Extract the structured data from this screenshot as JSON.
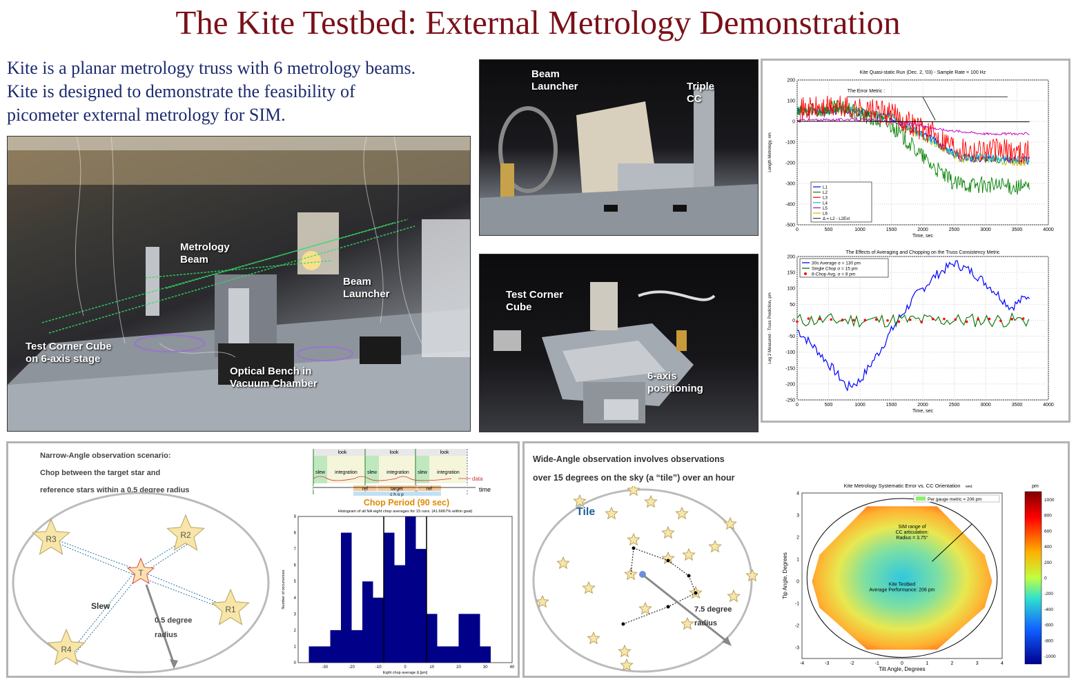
{
  "header": {
    "title": "The Kite Testbed: External Metrology Demonstration"
  },
  "intro": {
    "lines": [
      "Kite is a planar metrology truss with 6 metrology beams.",
      "Kite is designed to demonstrate the feasibility of",
      "picometer external metrology for SIM."
    ]
  },
  "photo_main": {
    "labels": [
      "Metrology\nBeam",
      "Beam\nLauncher",
      "Test Corner Cube\non 6-axis stage",
      "Optical Bench in\nVacuum Chamber"
    ]
  },
  "photo_top": {
    "labels": [
      "Beam\nLauncher",
      "Triple\nCC"
    ]
  },
  "photo_bottom": {
    "labels": [
      "Test Corner\nCube",
      "6-axis\npositioning"
    ]
  },
  "chart_top": {
    "title": "Kite Quasi-static Run (Dec. 2, '03) - Sample Rate = 100 Hz",
    "annotation": "The Error Metric :",
    "xlabel": "Time,   sec",
    "ylabel": "Length Metrology,  nm",
    "xticks": [
      "0",
      "500",
      "1000",
      "1500",
      "2000",
      "2500",
      "3000",
      "3500",
      "4000"
    ],
    "yticks": [
      "200",
      "100",
      "0",
      "-100",
      "-200",
      "-300",
      "-400",
      "-500"
    ],
    "legend": [
      "L1",
      "L2",
      "L3",
      "L4",
      "L5",
      "L6",
      "Δ = L2 - L2Est"
    ],
    "colors": [
      "#0000ff",
      "#008000",
      "#ff0000",
      "#00bfbf",
      "#bf00bf",
      "#bfbf00",
      "#404040"
    ]
  },
  "chart_mid": {
    "title": "The Effects of Averaging and Chopping on the Truss Consistency Metric",
    "xlabel": "Time,   sec",
    "ylabel": "Leg 2 Measured - Truss Prediction,   pm",
    "xticks": [
      "0",
      "500",
      "1000",
      "1500",
      "2000",
      "2500",
      "3000",
      "3500",
      "4000"
    ],
    "yticks": [
      "200",
      "150",
      "100",
      "50",
      "0",
      "-50",
      "-100",
      "-150",
      "-200",
      "-250"
    ],
    "legend": [
      "30s Average    σ = 130 pm",
      "Single Chop   σ = 15 pm",
      "8-Chop Avg.   σ = 8 pm"
    ],
    "colors": [
      "#0000ff",
      "#007000",
      "#ff0000"
    ]
  },
  "narrow": {
    "text": [
      "Narrow-Angle observation scenario:",
      "Chop between the target star and",
      "reference stars within a 0.5 degree radius"
    ],
    "stars": [
      "R3",
      "R2",
      "T",
      "R1",
      "R4"
    ],
    "slew": "Slew",
    "radius": "0.5 degree\nradius"
  },
  "chop": {
    "look": [
      "look",
      "look",
      "look"
    ],
    "slew": [
      "slew",
      "slew",
      "slew"
    ],
    "integration": [
      "integration",
      "integration",
      "integration"
    ],
    "data": "data",
    "time": "time",
    "ref": [
      "ref",
      "ref"
    ],
    "target": "target",
    "chop": "c h o p",
    "period": "Chop Period (90 sec)"
  },
  "hist": {
    "title": "Histogram of all NA eight chop averages for 15 runs. (41.6667% within goal)",
    "xlabel": "Eight chop average Δ [pm]",
    "ylabel": "Number of occurrences",
    "xticks": [
      "-30",
      "-20",
      "-10",
      "0",
      "10",
      "20",
      "30",
      "40"
    ],
    "yticks": [
      "0",
      "1",
      "2",
      "3",
      "4",
      "5",
      "6",
      "7",
      "8",
      "9"
    ],
    "bin_edges": [
      -36,
      -32,
      -28,
      -24,
      -20,
      -16,
      -12,
      -8,
      -4,
      0,
      4,
      8,
      12,
      16,
      20,
      24,
      28
    ],
    "counts": [
      1,
      1,
      2,
      8,
      2,
      5,
      4,
      8,
      6,
      9,
      7,
      3,
      1,
      1,
      3,
      3,
      1
    ],
    "goal_lines": [
      -8,
      8
    ]
  },
  "wide": {
    "text": [
      "Wide-Angle observation involves observations",
      "over 15 degrees on the sky (a “tile”) over an hour"
    ],
    "tile": "Tile",
    "radius": "7.5 degree\nradius"
  },
  "heat": {
    "title": "Kite Metrology Systematic Error vs. CC Orientation",
    "title_suffix": "wed.",
    "legend": "Per gauge metric = 206 pm",
    "ann1": [
      "SIM range of",
      "CC articulation:",
      "Radius = 3.75°"
    ],
    "ann2": [
      "Kite Testbed",
      "Average Performance:  206 pm"
    ],
    "xlabel": "Tilt Angle,   Degrees",
    "ylabel": "Tip Angle,   Degrees",
    "xticks": [
      "-4",
      "-3",
      "-2",
      "-1",
      "0",
      "1",
      "2",
      "3",
      "4"
    ],
    "yticks": [
      "4",
      "3",
      "2",
      "1",
      "0",
      "-1",
      "-2",
      "-3"
    ],
    "cbar_unit": "pm",
    "cbar_ticks": [
      "1000",
      "800",
      "600",
      "400",
      "200",
      "0",
      "-200",
      "-400",
      "-600",
      "-800",
      "-1000"
    ]
  }
}
